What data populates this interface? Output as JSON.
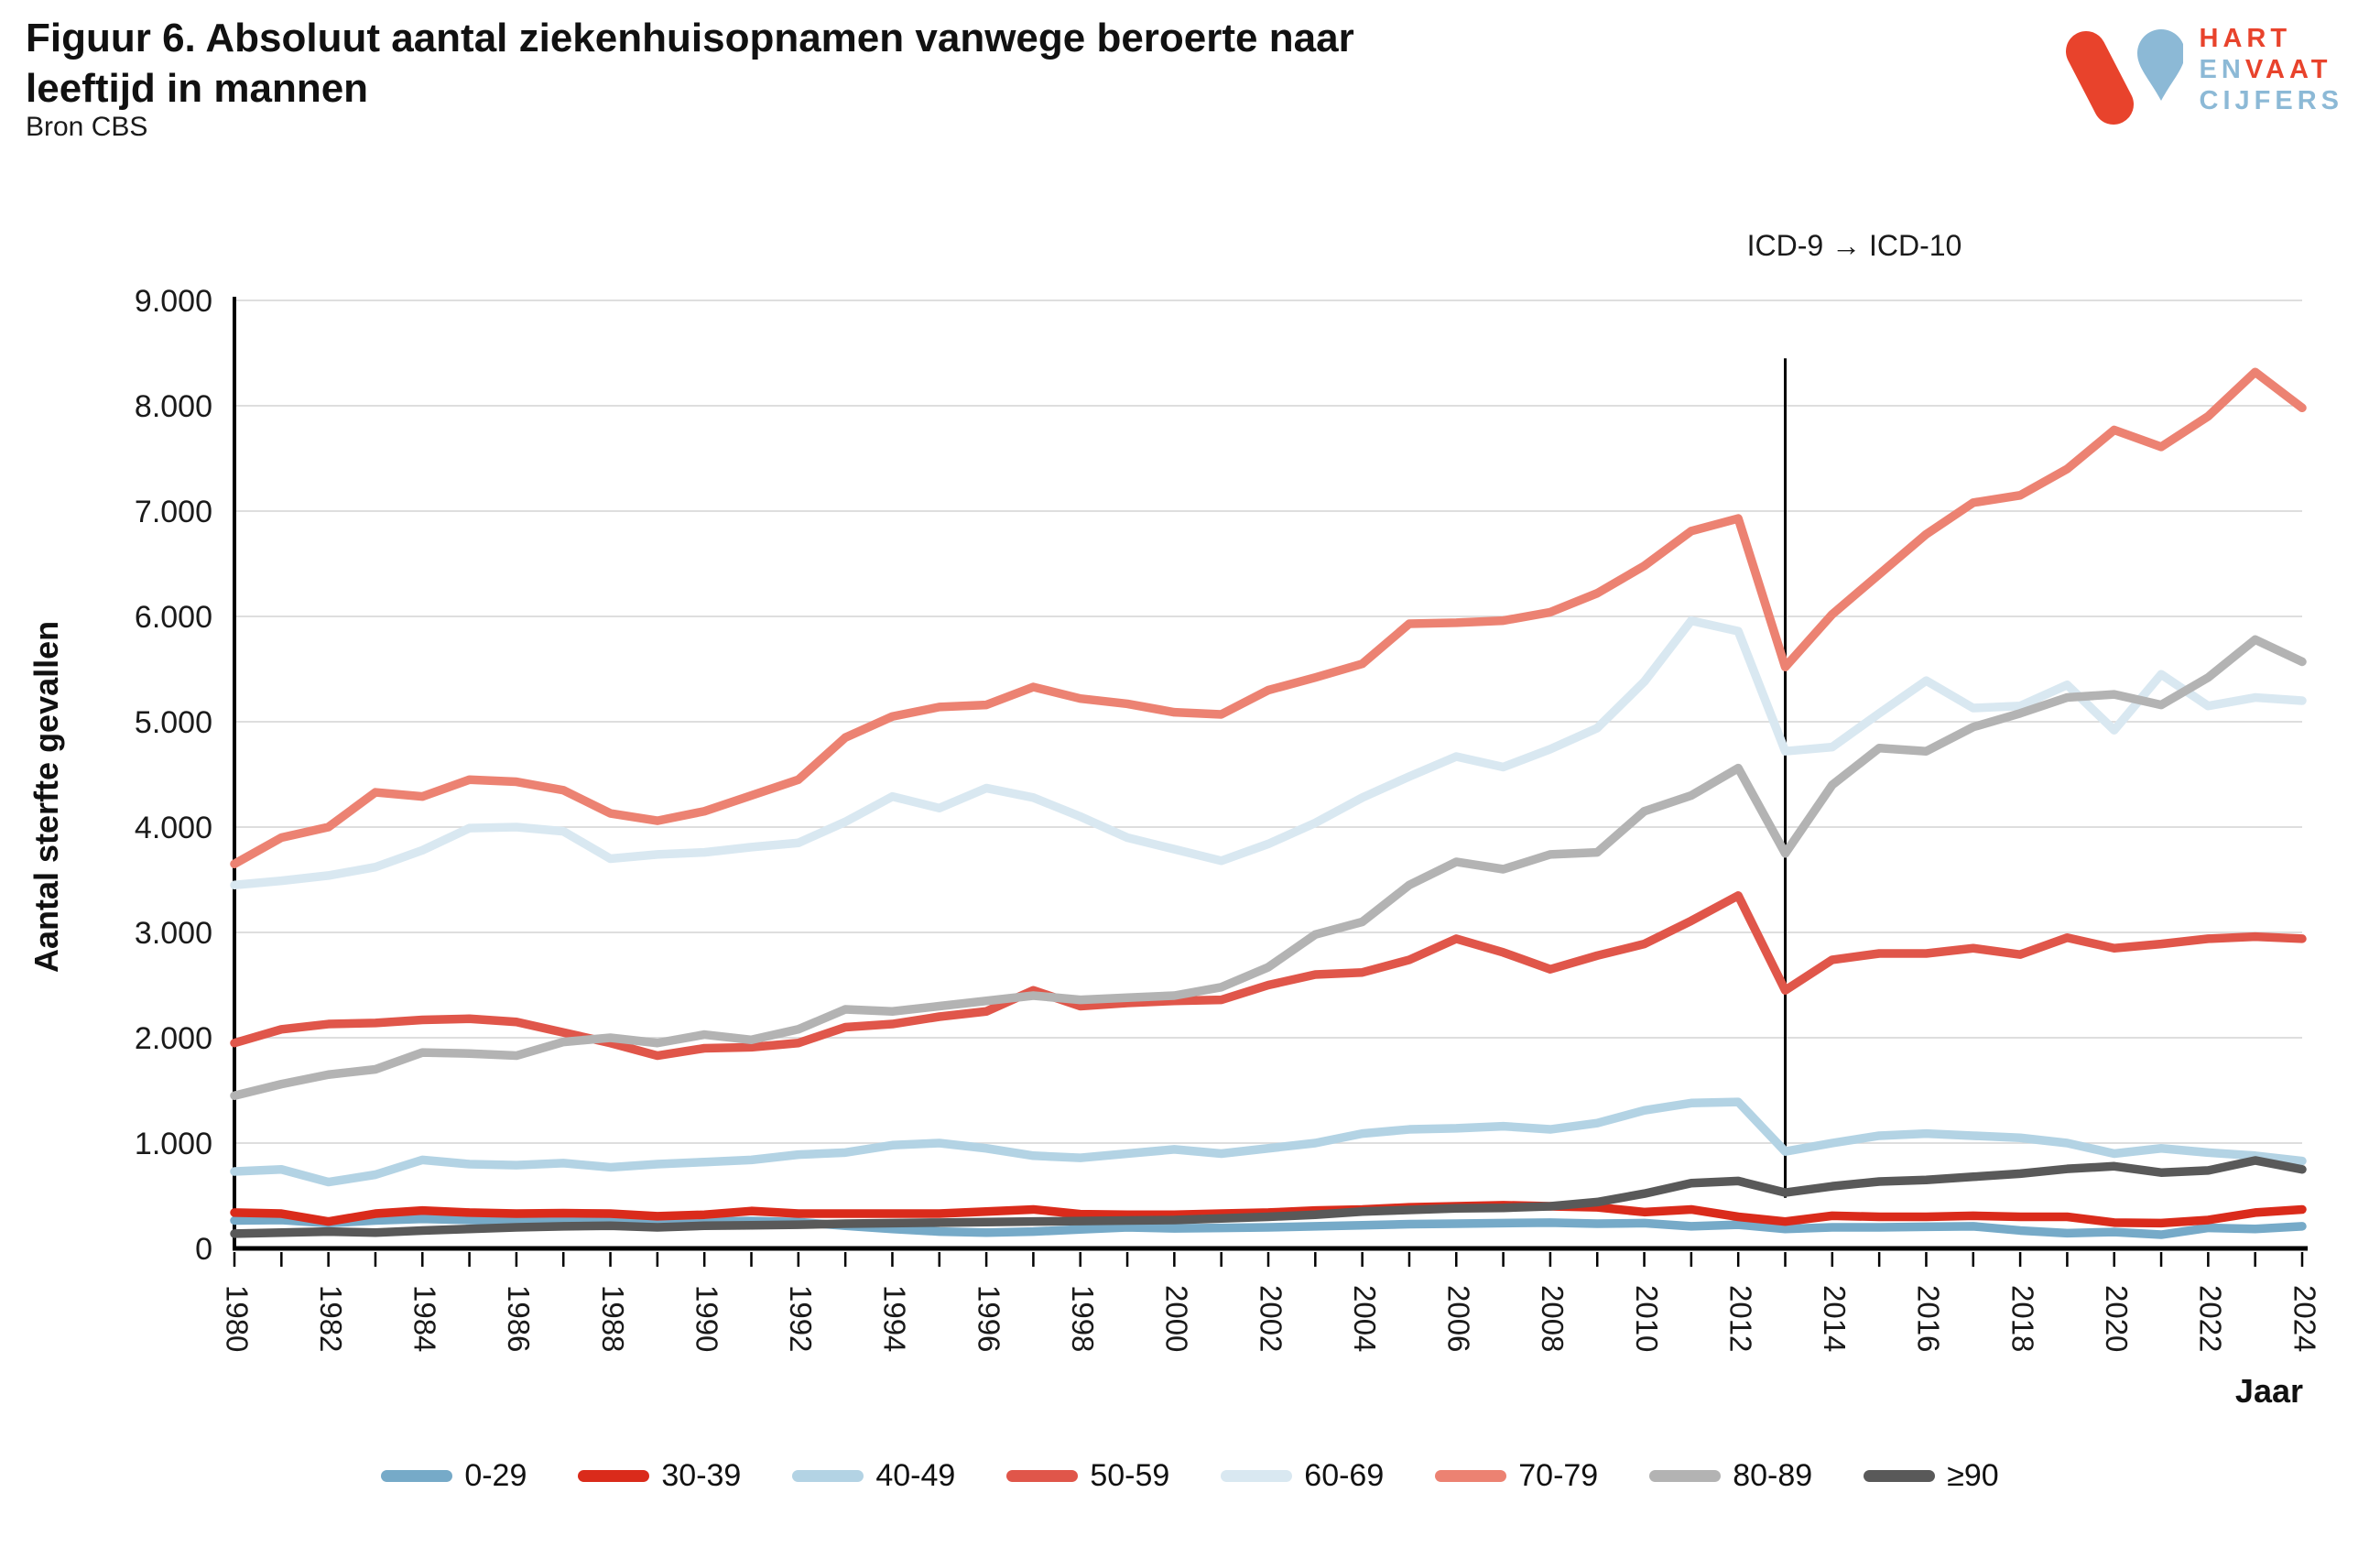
{
  "header": {
    "title": "Figuur 6. Absoluut aantal ziekenhuisopnamen vanwege beroerte naar leeftijd in mannen",
    "source": "Bron CBS"
  },
  "logo": {
    "hart": "HART",
    "en": "EN",
    "vaat": "VAAT",
    "cijfers": "CIJFERS",
    "red": "#e8432c",
    "blue": "#8cb9d6"
  },
  "chart_data": {
    "type": "line",
    "title": "Figuur 6. Absoluut aantal ziekenhuisopnamen vanwege beroerte naar leeftijd in mannen",
    "xlabel": "Jaar",
    "ylabel": "Aantal sterfte gevallen",
    "ylim": [
      0,
      9000
    ],
    "y_tick_values": [
      0,
      1000,
      2000,
      3000,
      4000,
      5000,
      6000,
      7000,
      8000,
      9000
    ],
    "y_tick_labels": [
      "0",
      "1.000",
      "2.000",
      "3.000",
      "4.000",
      "5.000",
      "6.000",
      "7.000",
      "8.000",
      "9.000"
    ],
    "x_label_step": 2,
    "grid": true,
    "legend_position": "bottom",
    "grid_color": "#d4d4d4",
    "axis_color": "#000000",
    "tick_label_color": "#1a1a1a",
    "icd_line": {
      "label": "ICD-9 → ICD-10",
      "x": 2013,
      "y_top": 8450,
      "y_bottom": 480
    },
    "x": [
      1980,
      1981,
      1982,
      1983,
      1984,
      1985,
      1986,
      1987,
      1988,
      1989,
      1990,
      1991,
      1992,
      1993,
      1994,
      1995,
      1996,
      1997,
      1998,
      1999,
      2000,
      2001,
      2002,
      2003,
      2004,
      2005,
      2006,
      2007,
      2008,
      2009,
      2010,
      2011,
      2012,
      2013,
      2014,
      2015,
      2016,
      2017,
      2018,
      2019,
      2020,
      2021,
      2022,
      2023,
      2024
    ],
    "series": [
      {
        "name": "0-29",
        "color": "#76aac8",
        "values": [
          265,
          270,
          240,
          265,
          280,
          270,
          260,
          265,
          255,
          250,
          255,
          260,
          250,
          215,
          185,
          160,
          150,
          160,
          180,
          200,
          190,
          195,
          200,
          210,
          220,
          230,
          235,
          240,
          245,
          235,
          240,
          210,
          225,
          185,
          200,
          200,
          205,
          210,
          170,
          145,
          155,
          130,
          195,
          185,
          210
        ]
      },
      {
        "name": "30-39",
        "color": "#da2b1b",
        "values": [
          340,
          330,
          255,
          330,
          360,
          340,
          330,
          335,
          330,
          305,
          320,
          355,
          330,
          330,
          330,
          330,
          350,
          370,
          325,
          320,
          320,
          330,
          340,
          360,
          370,
          390,
          400,
          410,
          400,
          390,
          345,
          370,
          300,
          255,
          310,
          300,
          300,
          310,
          300,
          300,
          245,
          240,
          270,
          340,
          370
        ]
      },
      {
        "name": "40-49",
        "color": "#b3d3e4",
        "values": [
          730,
          750,
          630,
          700,
          840,
          800,
          790,
          810,
          770,
          800,
          820,
          840,
          890,
          910,
          980,
          1000,
          950,
          880,
          860,
          900,
          940,
          900,
          950,
          1000,
          1090,
          1130,
          1140,
          1160,
          1130,
          1190,
          1310,
          1380,
          1390,
          920,
          1000,
          1070,
          1090,
          1070,
          1050,
          1000,
          900,
          950,
          910,
          880,
          830
        ]
      },
      {
        "name": "50-59",
        "color": "#e0564a",
        "values": [
          1950,
          2080,
          2130,
          2140,
          2170,
          2180,
          2150,
          2050,
          1950,
          1830,
          1900,
          1910,
          1950,
          2100,
          2130,
          2200,
          2250,
          2450,
          2300,
          2330,
          2350,
          2360,
          2500,
          2600,
          2620,
          2740,
          2940,
          2810,
          2650,
          2780,
          2890,
          3110,
          3350,
          2450,
          2740,
          2800,
          2800,
          2850,
          2790,
          2950,
          2850,
          2890,
          2940,
          2960,
          2940
        ]
      },
      {
        "name": "60-69",
        "color": "#d9e8f1",
        "values": [
          3450,
          3490,
          3540,
          3620,
          3780,
          3990,
          4000,
          3960,
          3700,
          3740,
          3760,
          3810,
          3850,
          4050,
          4290,
          4180,
          4370,
          4280,
          4100,
          3900,
          3790,
          3680,
          3840,
          4040,
          4280,
          4480,
          4670,
          4570,
          4740,
          4940,
          5380,
          5960,
          5860,
          4720,
          4760,
          5080,
          5390,
          5130,
          5150,
          5350,
          4920,
          5450,
          5150,
          5230,
          5200
        ]
      },
      {
        "name": "70-79",
        "color": "#ec8272",
        "values": [
          3650,
          3900,
          4000,
          4330,
          4290,
          4450,
          4430,
          4350,
          4130,
          4060,
          4150,
          4300,
          4450,
          4850,
          5050,
          5140,
          5160,
          5330,
          5220,
          5170,
          5090,
          5070,
          5300,
          5420,
          5550,
          5930,
          5940,
          5960,
          6040,
          6220,
          6480,
          6810,
          6930,
          5520,
          6020,
          6400,
          6780,
          7080,
          7150,
          7400,
          7770,
          7610,
          7900,
          8320,
          7980
        ]
      },
      {
        "name": "80-89",
        "color": "#b3b3b3",
        "values": [
          1450,
          1560,
          1650,
          1700,
          1860,
          1850,
          1830,
          1960,
          2000,
          1950,
          2030,
          1980,
          2080,
          2270,
          2250,
          2300,
          2350,
          2400,
          2360,
          2380,
          2400,
          2480,
          2670,
          2980,
          3100,
          3450,
          3670,
          3600,
          3740,
          3760,
          4150,
          4300,
          4560,
          3750,
          4400,
          4750,
          4720,
          4950,
          5080,
          5230,
          5260,
          5160,
          5420,
          5780,
          5570
        ]
      },
      {
        "name": "≥90",
        "color": "#595959",
        "values": [
          140,
          150,
          160,
          150,
          170,
          185,
          200,
          210,
          215,
          200,
          215,
          220,
          225,
          235,
          240,
          245,
          250,
          255,
          260,
          265,
          270,
          285,
          300,
          320,
          350,
          365,
          380,
          385,
          400,
          440,
          520,
          620,
          640,
          530,
          590,
          635,
          650,
          680,
          710,
          755,
          780,
          720,
          740,
          835,
          750
        ]
      }
    ]
  }
}
